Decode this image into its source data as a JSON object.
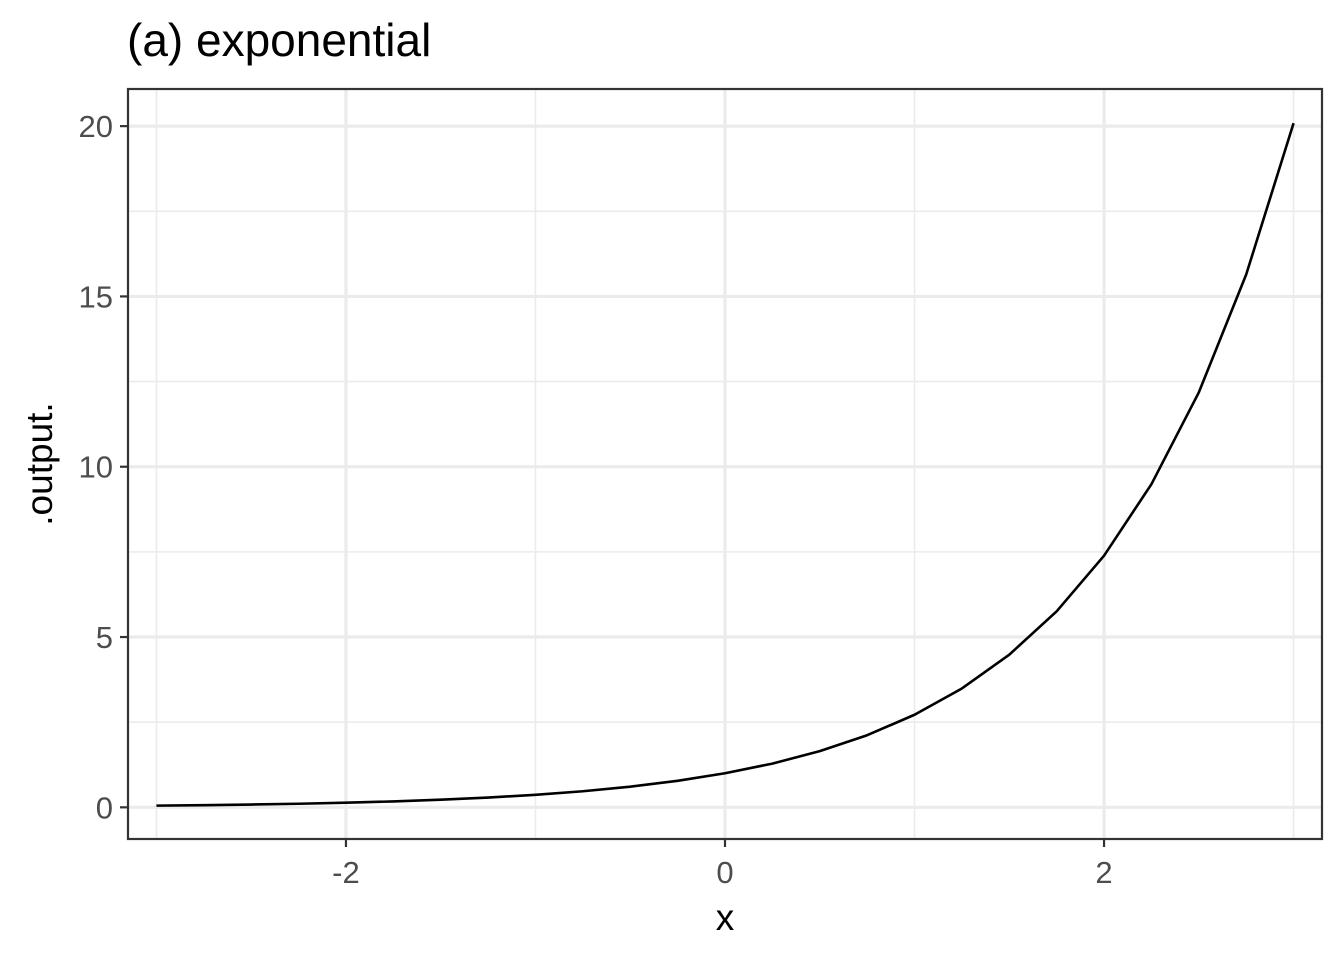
{
  "chart_data": {
    "type": "line",
    "title": "(a) exponential",
    "xlabel": "x",
    "ylabel": ".output.",
    "xlim": [
      -3.15,
      3.15
    ],
    "ylim": [
      -0.93,
      21.09
    ],
    "x_ticks": [
      -2,
      0,
      2
    ],
    "x_tick_labels": [
      "-2",
      "0",
      "2"
    ],
    "x_minor_ticks": [
      -3,
      -1,
      1,
      3
    ],
    "y_ticks": [
      0,
      5,
      10,
      15,
      20
    ],
    "y_tick_labels": [
      "0",
      "5",
      "10",
      "15",
      "20"
    ],
    "y_minor_ticks": [
      2.5,
      7.5,
      12.5,
      17.5
    ],
    "grid": true,
    "legend": "none",
    "series": [
      {
        "color": "#000000",
        "x": [
          -3.0,
          -2.75,
          -2.5,
          -2.25,
          -2.0,
          -1.75,
          -1.5,
          -1.25,
          -1.0,
          -0.75,
          -0.5,
          -0.25,
          0.0,
          0.25,
          0.5,
          0.75,
          1.0,
          1.25,
          1.5,
          1.75,
          2.0,
          2.25,
          2.5,
          2.75,
          3.0
        ],
        "y": [
          0.05,
          0.064,
          0.082,
          0.105,
          0.135,
          0.174,
          0.223,
          0.287,
          0.368,
          0.472,
          0.607,
          0.779,
          1.0,
          1.284,
          1.649,
          2.117,
          2.718,
          3.49,
          4.482,
          5.755,
          7.389,
          9.488,
          12.182,
          15.643,
          20.086
        ]
      }
    ]
  }
}
